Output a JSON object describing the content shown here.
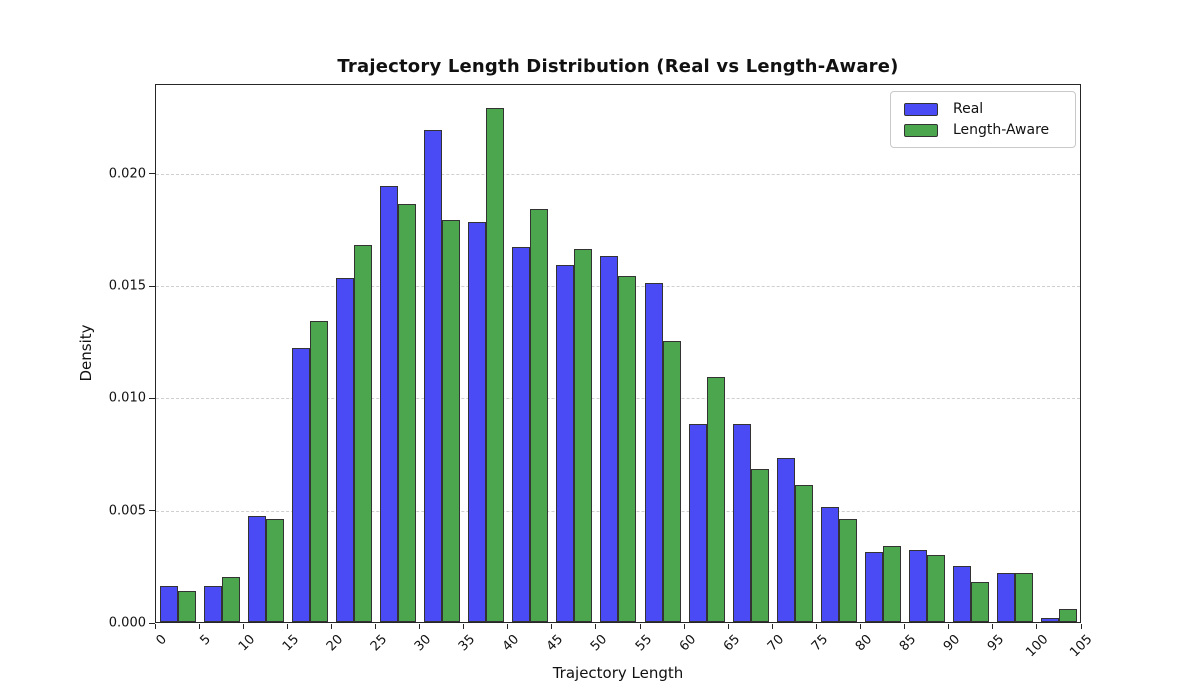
{
  "figure": {
    "title": "Trajectory Length Distribution (Real vs Length-Aware)",
    "xlabel": "Trajectory Length",
    "ylabel": "Density"
  },
  "legend": {
    "position": "upper-right",
    "items": [
      {
        "label": "Real",
        "color": "#4b4bf5"
      },
      {
        "label": "Length-Aware",
        "color": "#4ca64d"
      }
    ]
  },
  "axes": {
    "y_ticks": [
      {
        "label": "0.000",
        "value": 0.0
      },
      {
        "label": "0.005",
        "value": 0.005
      },
      {
        "label": "0.010",
        "value": 0.01
      },
      {
        "label": "0.015",
        "value": 0.015
      },
      {
        "label": "0.020",
        "value": 0.02
      }
    ],
    "x_ticks": [
      {
        "label": "0",
        "value": 0
      },
      {
        "label": "5",
        "value": 5
      },
      {
        "label": "10",
        "value": 10
      },
      {
        "label": "15",
        "value": 15
      },
      {
        "label": "20",
        "value": 20
      },
      {
        "label": "25",
        "value": 25
      },
      {
        "label": "30",
        "value": 30
      },
      {
        "label": "35",
        "value": 35
      },
      {
        "label": "40",
        "value": 40
      },
      {
        "label": "45",
        "value": 45
      },
      {
        "label": "50",
        "value": 50
      },
      {
        "label": "55",
        "value": 55
      },
      {
        "label": "60",
        "value": 60
      },
      {
        "label": "65",
        "value": 65
      },
      {
        "label": "70",
        "value": 70
      },
      {
        "label": "75",
        "value": 75
      },
      {
        "label": "80",
        "value": 80
      },
      {
        "label": "85",
        "value": 85
      },
      {
        "label": "90",
        "value": 90
      },
      {
        "label": "95",
        "value": 95
      },
      {
        "label": "100",
        "value": 100
      },
      {
        "label": "105",
        "value": 105
      }
    ]
  },
  "chart_data": {
    "type": "bar",
    "subtype": "grouped-histogram",
    "title": "Trajectory Length Distribution (Real vs Length-Aware)",
    "xlabel": "Trajectory Length",
    "ylabel": "Density",
    "xlim": [
      0,
      105
    ],
    "ylim": [
      0,
      0.024
    ],
    "bin_width": 5,
    "bin_edges": [
      0,
      5,
      10,
      15,
      20,
      25,
      30,
      35,
      40,
      45,
      50,
      55,
      60,
      65,
      70,
      75,
      80,
      85,
      90,
      95,
      100,
      105
    ],
    "categories": [
      "0-5",
      "5-10",
      "10-15",
      "15-20",
      "20-25",
      "25-30",
      "30-35",
      "35-40",
      "40-45",
      "45-50",
      "50-55",
      "55-60",
      "60-65",
      "65-70",
      "70-75",
      "75-80",
      "80-85",
      "85-90",
      "90-95",
      "95-100",
      "100-105"
    ],
    "grid": "horizontal-dashed",
    "legend_position": "upper right",
    "series": [
      {
        "name": "Real",
        "color": "#4b4bf5",
        "values": [
          0.0016,
          0.0016,
          0.0047,
          0.0122,
          0.0153,
          0.0194,
          0.0219,
          0.0178,
          0.0167,
          0.0159,
          0.0163,
          0.0151,
          0.0088,
          0.0088,
          0.0073,
          0.0051,
          0.0031,
          0.0032,
          0.0025,
          0.0022,
          0.0002
        ]
      },
      {
        "name": "Length-Aware",
        "color": "#4ca64d",
        "values": [
          0.0014,
          0.002,
          0.0046,
          0.0134,
          0.0168,
          0.0186,
          0.0179,
          0.0229,
          0.0184,
          0.0166,
          0.0154,
          0.0125,
          0.0109,
          0.0068,
          0.0061,
          0.0046,
          0.0034,
          0.003,
          0.0018,
          0.0022,
          0.0006
        ]
      }
    ]
  },
  "style": {
    "bar_edge_color": "#333333",
    "grid_color": "#cfcfcf",
    "spine_color": "#262626",
    "text_color": "#111111",
    "background": "#ffffff"
  }
}
